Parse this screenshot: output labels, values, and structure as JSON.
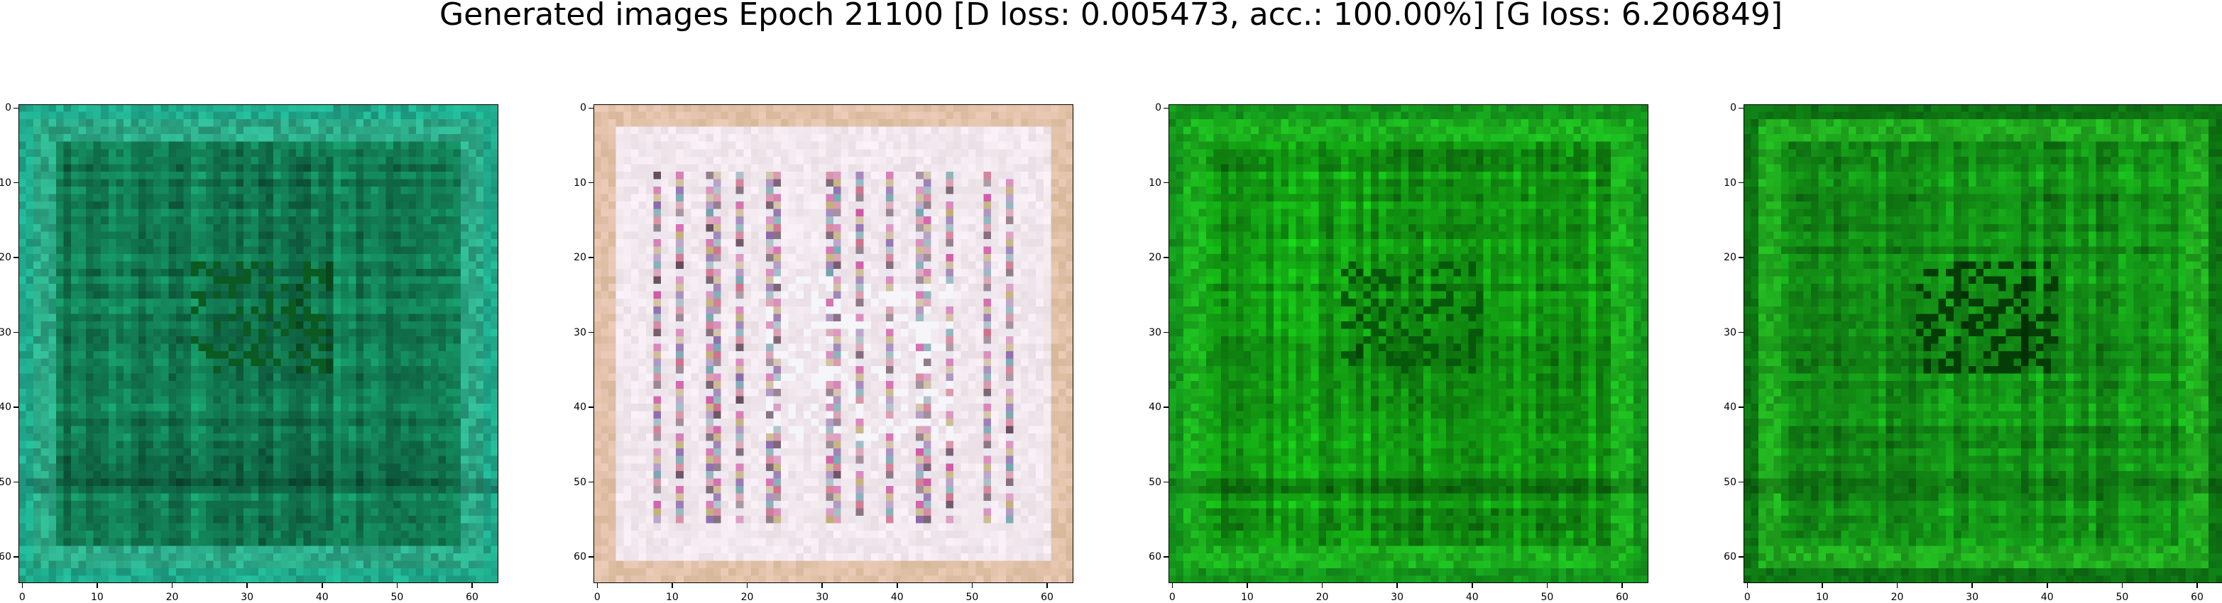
{
  "figure": {
    "title": "Generated images Epoch 21100 [D loss: 0.005473, acc.: 100.00%] [G loss: 6.206849]"
  },
  "axes": {
    "x_ticks": [
      "0",
      "10",
      "20",
      "30",
      "40",
      "50",
      "60"
    ],
    "y_ticks": [
      "0",
      "10",
      "20",
      "30",
      "40",
      "50",
      "60"
    ],
    "xlim": [
      -0.5,
      63.5
    ],
    "ylim": [
      63.5,
      -0.5
    ],
    "image_size": 64
  },
  "panels": [
    {
      "name": "generated-image-1",
      "palette": "teal-green",
      "base": "#127c54",
      "edge": "#1ea386",
      "dark": "#0b5a22",
      "accent": "#2fb38f"
    },
    {
      "name": "generated-image-2",
      "palette": "pale-multicolor",
      "base": "#eadfe3",
      "edge": "#d8b89a",
      "dark": "#b07a9a",
      "accent": "#c8358e"
    },
    {
      "name": "generated-image-3",
      "palette": "green",
      "base": "#129a12",
      "edge": "#138f1a",
      "dark": "#06590b",
      "accent": "#1db91f"
    },
    {
      "name": "generated-image-4",
      "palette": "green",
      "base": "#138f16",
      "edge": "#0d6e12",
      "dark": "#053d06",
      "accent": "#22b320"
    }
  ]
}
